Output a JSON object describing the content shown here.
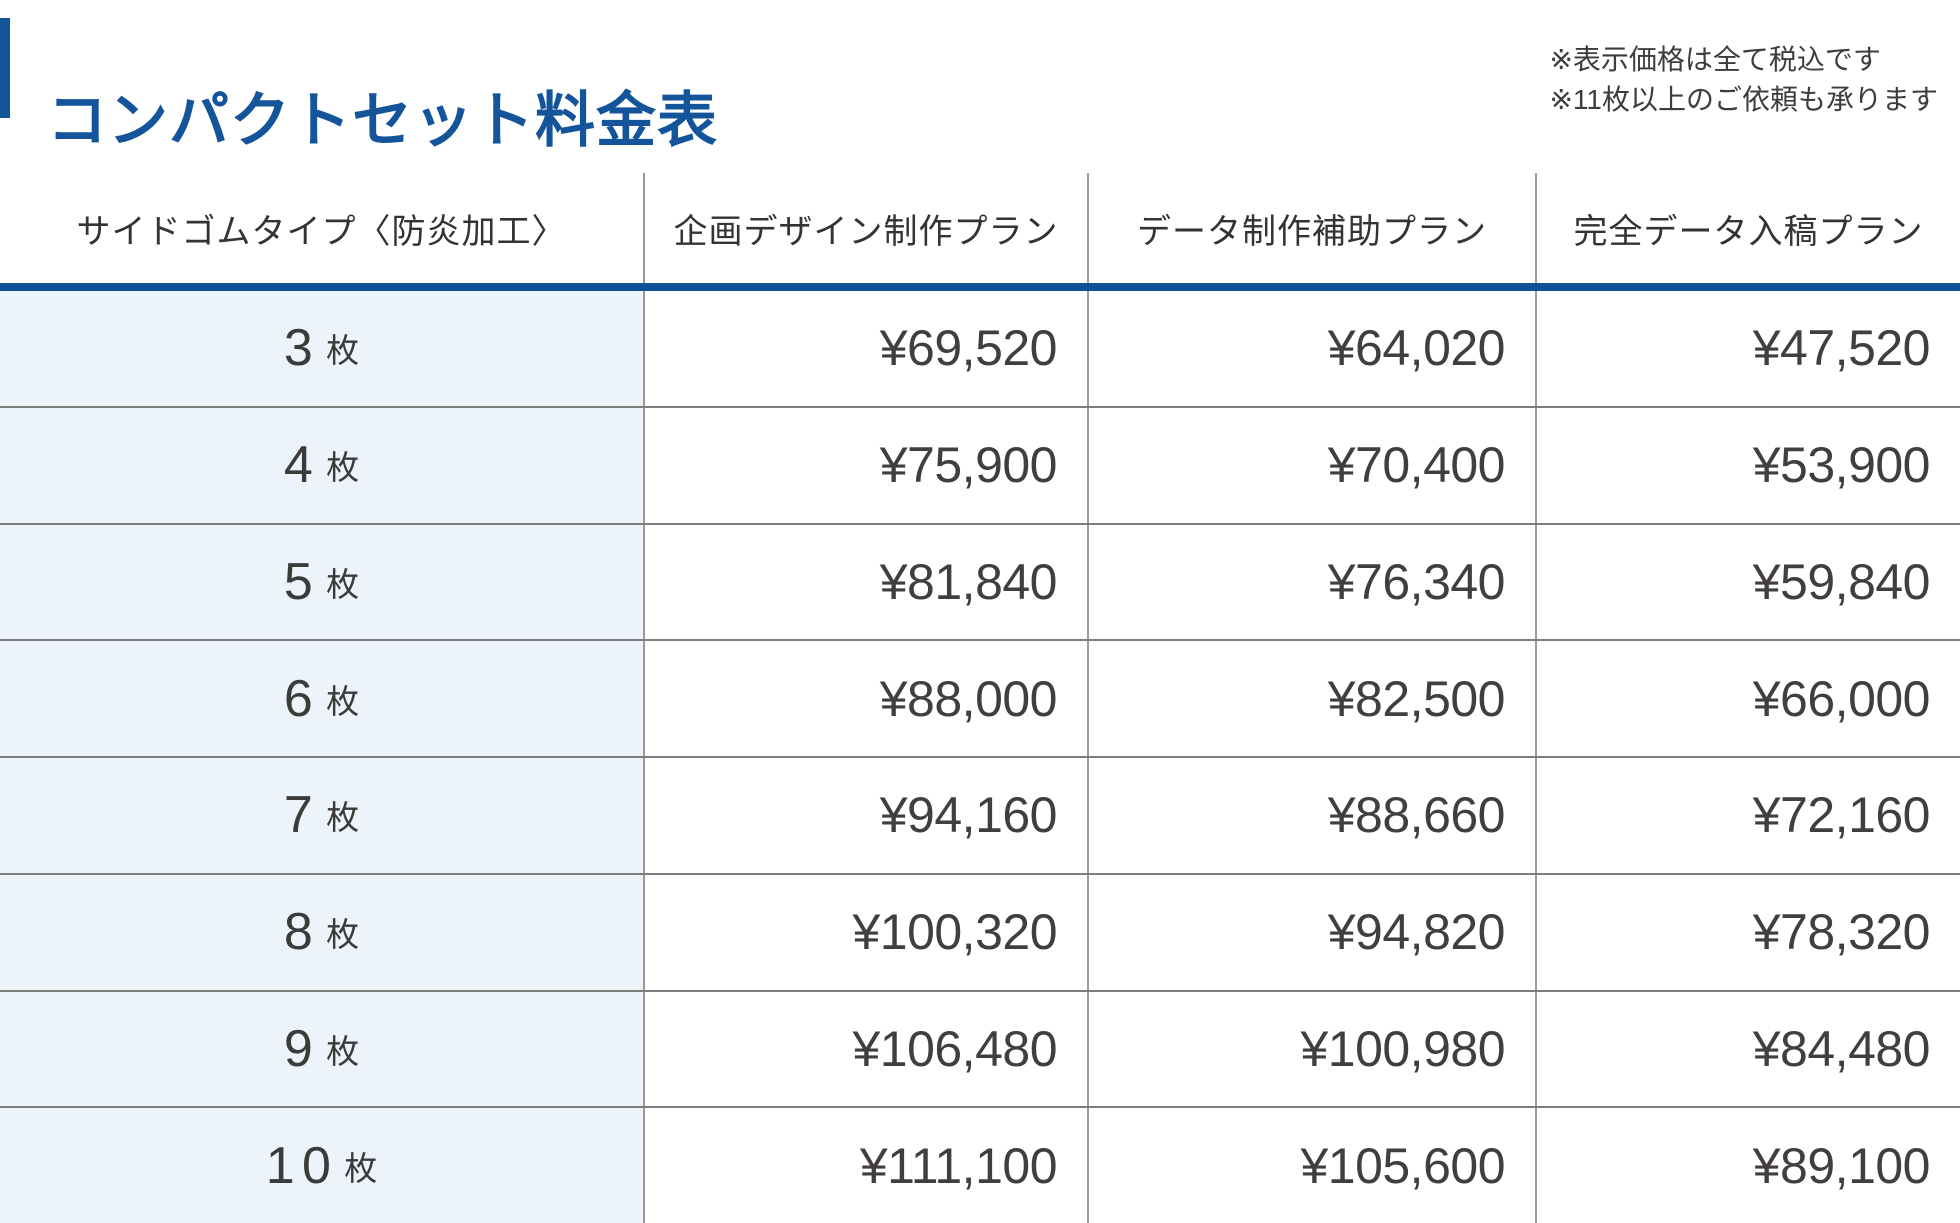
{
  "page": {
    "title": "コンパクトセット料金表",
    "notes": {
      "line1": "※表示価格は全て税込です",
      "line2": "※11枚以上のご依頼も承ります"
    }
  },
  "table": {
    "columns": [
      "サイドゴムタイプ〈防炎加工〉",
      "企画デザイン制作プラン",
      "データ制作補助プラン",
      "完全データ入稿プラン"
    ],
    "unit_suffix": "枚",
    "rows": [
      {
        "qty": "3",
        "prices": [
          "¥69,520",
          "¥64,020",
          "¥47,520"
        ]
      },
      {
        "qty": "4",
        "prices": [
          "¥75,900",
          "¥70,400",
          "¥53,900"
        ]
      },
      {
        "qty": "5",
        "prices": [
          "¥81,840",
          "¥76,340",
          "¥59,840"
        ]
      },
      {
        "qty": "6",
        "prices": [
          "¥88,000",
          "¥82,500",
          "¥66,000"
        ]
      },
      {
        "qty": "7",
        "prices": [
          "¥94,160",
          "¥88,660",
          "¥72,160"
        ]
      },
      {
        "qty": "8",
        "prices": [
          "¥100,320",
          "¥94,820",
          "¥78,320"
        ]
      },
      {
        "qty": "9",
        "prices": [
          "¥106,480",
          "¥100,980",
          "¥84,480"
        ]
      },
      {
        "qty": "10",
        "prices": [
          "¥111,100",
          "¥105,600",
          "¥89,100"
        ]
      }
    ]
  },
  "colors": {
    "accent_blue": "#14549B",
    "divider_blue": "#0E5197",
    "row_label_bg": "#EDF3FB",
    "text_dark": "#3B3B3B"
  }
}
